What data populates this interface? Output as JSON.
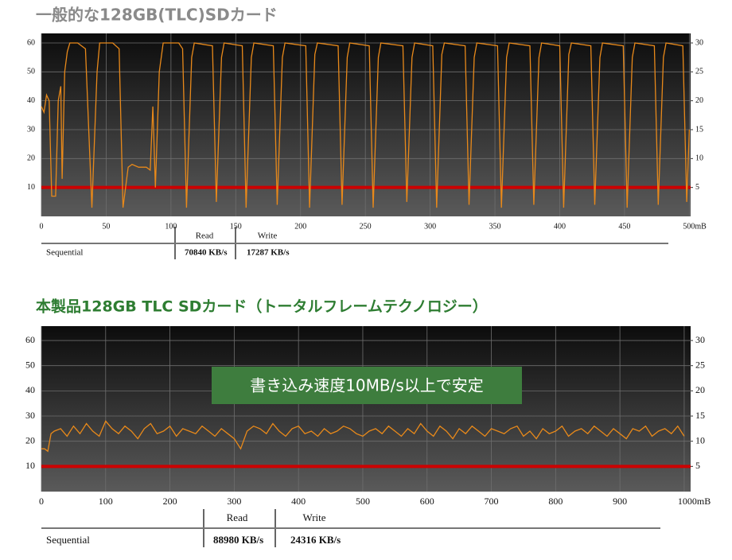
{
  "chart_data": [
    {
      "type": "line",
      "title": "一般的な128GB(TLC)SDカード",
      "color": "#e8891a",
      "x": [
        0,
        2,
        4,
        6,
        8,
        11,
        13,
        15,
        16,
        18,
        20,
        22,
        28,
        34,
        39,
        43,
        45,
        55,
        60,
        63,
        67,
        70,
        75,
        81,
        84,
        86,
        88,
        91,
        94,
        106,
        109,
        112,
        116,
        118,
        132,
        135,
        139,
        141,
        155,
        158,
        162,
        164,
        179,
        182,
        186,
        188,
        204,
        207,
        211,
        213,
        229,
        232,
        236,
        238,
        253,
        256,
        260,
        262,
        279,
        282,
        286,
        288,
        302,
        305,
        309,
        311,
        327,
        330,
        334,
        336,
        352,
        355,
        359,
        361,
        377,
        380,
        384,
        386,
        400,
        403,
        407,
        409,
        424,
        427,
        431,
        433,
        449,
        452,
        456,
        458,
        473,
        476,
        480,
        482,
        495,
        498,
        500
      ],
      "values": [
        38,
        36,
        42,
        40,
        7,
        7,
        40,
        45,
        13,
        50,
        57,
        60,
        60,
        58,
        3,
        50,
        60,
        60,
        58,
        3,
        17,
        18,
        17,
        17,
        16,
        38,
        10,
        50,
        60,
        60,
        58,
        3,
        55,
        60,
        59,
        5,
        55,
        60,
        59,
        3,
        55,
        60,
        59,
        4,
        55,
        60,
        59,
        3,
        56,
        60,
        59,
        4,
        55,
        60,
        59,
        3,
        55,
        60,
        59,
        5,
        55,
        60,
        59,
        3,
        56,
        60,
        59,
        4,
        55,
        60,
        59,
        3,
        55,
        60,
        59,
        4,
        55,
        60,
        59,
        3,
        56,
        60,
        59,
        4,
        55,
        60,
        59,
        3,
        55,
        60,
        59,
        4,
        55,
        60,
        59,
        5,
        30
      ],
      "xlim": [
        0,
        501
      ],
      "ylim": [
        0,
        63.3
      ],
      "y2lim": [
        0,
        31.65
      ],
      "xticks": [
        0,
        50,
        100,
        150,
        200,
        250,
        300,
        350,
        400,
        450,
        {
          "value": 500,
          "label": "500mB"
        }
      ],
      "yticks": [
        10,
        20,
        30,
        40,
        50,
        60
      ],
      "y2ticks": [
        5,
        10,
        15,
        20,
        25,
        30
      ],
      "grid": true,
      "reference_line": {
        "value": 10,
        "color": "#cc0000"
      },
      "table": {
        "headers": [
          "Read",
          "Write"
        ],
        "row_label": "Sequential",
        "cells": [
          "70840 KB/s",
          "17287 KB/s"
        ]
      }
    },
    {
      "type": "line",
      "title": "本製品128GB TLC SDカード（トータルフレームテクノロジー）",
      "color": "#e8891a",
      "annotation": "書き込み速度10MB/s以上で安定",
      "x": [
        0,
        5,
        10,
        15,
        20,
        30,
        40,
        50,
        60,
        70,
        80,
        90,
        100,
        110,
        120,
        130,
        140,
        150,
        160,
        170,
        180,
        190,
        200,
        210,
        220,
        230,
        240,
        250,
        260,
        270,
        280,
        290,
        300,
        310,
        320,
        330,
        340,
        350,
        360,
        370,
        380,
        390,
        400,
        410,
        420,
        430,
        440,
        450,
        460,
        470,
        480,
        490,
        500,
        510,
        520,
        530,
        540,
        550,
        560,
        570,
        580,
        590,
        600,
        610,
        620,
        630,
        640,
        650,
        660,
        670,
        680,
        690,
        700,
        710,
        720,
        730,
        740,
        750,
        760,
        770,
        780,
        790,
        800,
        810,
        820,
        830,
        840,
        850,
        860,
        870,
        880,
        890,
        900,
        910,
        920,
        930,
        940,
        950,
        960,
        970,
        980,
        990,
        1000
      ],
      "values": [
        17,
        17,
        16,
        23,
        24,
        25,
        22,
        26,
        23,
        27,
        24,
        22,
        28,
        25,
        23,
        26,
        24,
        21,
        25,
        27,
        23,
        24,
        26,
        22,
        25,
        24,
        23,
        26,
        24,
        22,
        25,
        23,
        21,
        17,
        24,
        26,
        25,
        23,
        27,
        24,
        22,
        25,
        26,
        23,
        24,
        22,
        25,
        23,
        24,
        26,
        25,
        23,
        22,
        24,
        25,
        23,
        26,
        24,
        22,
        25,
        23,
        27,
        24,
        22,
        26,
        24,
        21,
        25,
        23,
        26,
        24,
        22,
        25,
        24,
        23,
        25,
        26,
        22,
        24,
        21,
        25,
        23,
        24,
        26,
        22,
        24,
        25,
        23,
        26,
        24,
        22,
        25,
        23,
        21,
        25,
        24,
        26,
        22,
        24,
        25,
        23,
        26,
        22
      ],
      "xlim": [
        0,
        1010
      ],
      "ylim": [
        0,
        65.7
      ],
      "y2lim": [
        0,
        32.85
      ],
      "xticks": [
        0,
        100,
        200,
        300,
        400,
        500,
        600,
        700,
        800,
        900,
        {
          "value": 1000,
          "label": "1000mB"
        }
      ],
      "yticks": [
        10,
        20,
        30,
        40,
        50,
        60
      ],
      "y2ticks": [
        5,
        10,
        15,
        20,
        25,
        30
      ],
      "grid": true,
      "reference_line": {
        "value": 10,
        "color": "#cc0000"
      },
      "table": {
        "headers": [
          "Read",
          "Write"
        ],
        "row_label": "Sequential",
        "cells": [
          "88980 KB/s",
          "24316 KB/s"
        ]
      }
    }
  ]
}
